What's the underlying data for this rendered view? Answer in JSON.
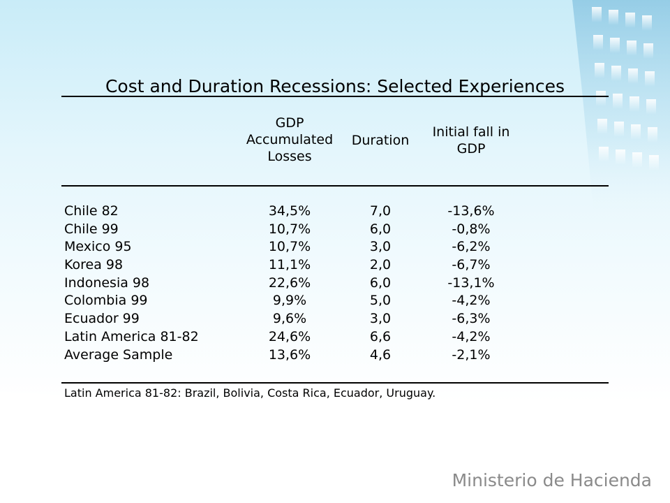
{
  "slide": {
    "title": "Cost and Duration Recessions: Selected Experiences"
  },
  "table": {
    "headers": {
      "gdp_losses": [
        "GDP",
        "Accumulated",
        "Losses"
      ],
      "duration": "Duration",
      "initial_fall": [
        "Initial fall in",
        "GDP"
      ]
    },
    "rows": [
      {
        "country": "Chile 82",
        "gdp_losses": "34,5%",
        "duration": "7,0",
        "initial_fall": "-13,6%"
      },
      {
        "country": "Chile 99",
        "gdp_losses": "10,7%",
        "duration": "6,0",
        "initial_fall": "-0,8%"
      },
      {
        "country": "Mexico 95",
        "gdp_losses": "10,7%",
        "duration": "3,0",
        "initial_fall": "-6,2%"
      },
      {
        "country": "Korea 98",
        "gdp_losses": "11,1%",
        "duration": "2,0",
        "initial_fall": "-6,7%"
      },
      {
        "country": "Indonesia 98",
        "gdp_losses": "22,6%",
        "duration": "6,0",
        "initial_fall": "-13,1%"
      },
      {
        "country": "Colombia 99",
        "gdp_losses": "9,9%",
        "duration": "5,0",
        "initial_fall": "-4,2%"
      },
      {
        "country": "Ecuador 99",
        "gdp_losses": "9,6%",
        "duration": "3,0",
        "initial_fall": "-6,3%"
      },
      {
        "country": "Latin America 81-82",
        "gdp_losses": "24,6%",
        "duration": "6,6",
        "initial_fall": "-4,2%"
      },
      {
        "country": "Average Sample",
        "gdp_losses": "13,6%",
        "duration": "4,6",
        "initial_fall": "-2,1%"
      }
    ],
    "footnote": "Latin America 81-82: Brazil, Bolivia, Costa Rica, Ecuador, Uruguay."
  },
  "branding": {
    "logo_text": "Ministerio de Hacienda",
    "logo_color": "#8a8a8a"
  },
  "colors": {
    "background_top": "#c9ecf8",
    "background_bottom": "#ffffff",
    "text": "#000000"
  }
}
